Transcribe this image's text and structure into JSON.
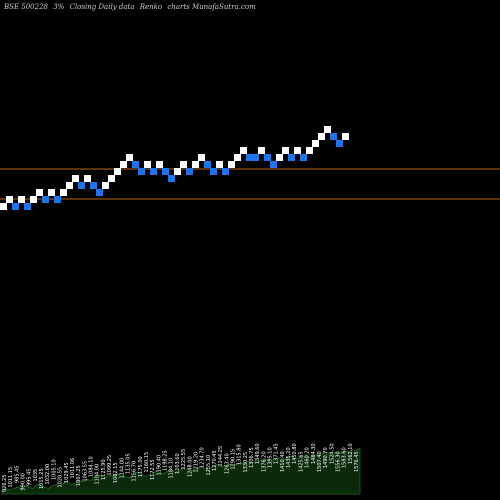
{
  "header": {
    "exchange_code": "BSE 500228",
    "box_size": "3%",
    "description": "Closing Daily data",
    "chart_kind": "Renko",
    "source": "charts MunafaSutra.com"
  },
  "colors": {
    "background": "#000000",
    "up_brick": "#ffffff",
    "down_brick": "#1e74e8",
    "reference_line": "#b8650f",
    "volume_fill": "#0b2a0b",
    "volume_line": "#1e6b1e",
    "label_text": "#ffffff"
  },
  "chart_data": {
    "type": "renko",
    "title": "BSE 500228 3% Closing Daily data Renko charts MunafaSutra.com",
    "bricks": [
      {
        "dir": "up",
        "level": 0
      },
      {
        "dir": "up",
        "level": 1
      },
      {
        "dir": "down",
        "level": 0
      },
      {
        "dir": "up",
        "level": 1
      },
      {
        "dir": "down",
        "level": 0
      },
      {
        "dir": "up",
        "level": 1
      },
      {
        "dir": "up",
        "level": 2
      },
      {
        "dir": "down",
        "level": 1
      },
      {
        "dir": "up",
        "level": 2
      },
      {
        "dir": "down",
        "level": 1
      },
      {
        "dir": "up",
        "level": 2
      },
      {
        "dir": "up",
        "level": 3
      },
      {
        "dir": "up",
        "level": 4
      },
      {
        "dir": "down",
        "level": 3
      },
      {
        "dir": "up",
        "level": 4
      },
      {
        "dir": "down",
        "level": 3
      },
      {
        "dir": "down",
        "level": 2
      },
      {
        "dir": "up",
        "level": 3
      },
      {
        "dir": "up",
        "level": 4
      },
      {
        "dir": "up",
        "level": 5
      },
      {
        "dir": "up",
        "level": 6
      },
      {
        "dir": "up",
        "level": 7
      },
      {
        "dir": "down",
        "level": 6
      },
      {
        "dir": "down",
        "level": 5
      },
      {
        "dir": "up",
        "level": 6
      },
      {
        "dir": "down",
        "level": 5
      },
      {
        "dir": "up",
        "level": 6
      },
      {
        "dir": "down",
        "level": 5
      },
      {
        "dir": "down",
        "level": 4
      },
      {
        "dir": "up",
        "level": 5
      },
      {
        "dir": "up",
        "level": 6
      },
      {
        "dir": "down",
        "level": 5
      },
      {
        "dir": "up",
        "level": 6
      },
      {
        "dir": "up",
        "level": 7
      },
      {
        "dir": "down",
        "level": 6
      },
      {
        "dir": "down",
        "level": 5
      },
      {
        "dir": "up",
        "level": 6
      },
      {
        "dir": "down",
        "level": 5
      },
      {
        "dir": "up",
        "level": 6
      },
      {
        "dir": "up",
        "level": 7
      },
      {
        "dir": "up",
        "level": 8
      },
      {
        "dir": "down",
        "level": 7
      },
      {
        "dir": "down",
        "level": 7
      },
      {
        "dir": "up",
        "level": 8
      },
      {
        "dir": "down",
        "level": 7
      },
      {
        "dir": "down",
        "level": 6
      },
      {
        "dir": "up",
        "level": 7
      },
      {
        "dir": "up",
        "level": 8
      },
      {
        "dir": "down",
        "level": 7
      },
      {
        "dir": "up",
        "level": 8
      },
      {
        "dir": "down",
        "level": 7
      },
      {
        "dir": "up",
        "level": 8
      },
      {
        "dir": "up",
        "level": 9
      },
      {
        "dir": "up",
        "level": 10
      },
      {
        "dir": "up",
        "level": 11
      },
      {
        "dir": "down",
        "level": 10
      },
      {
        "dir": "down",
        "level": 9
      },
      {
        "dir": "up",
        "level": 10
      }
    ],
    "price_labels": [
      "926.25",
      "1011.15",
      "985.45",
      "990.00",
      "995.45",
      "1035",
      "1015.25",
      "1032.00",
      "1005.10",
      "1020.55",
      "1029.45",
      "1011.06",
      "1007.25",
      "1063.55",
      "1084.10",
      "1104.00",
      "1125.90",
      "1099.25",
      "1082.15",
      "1144.00",
      "1135.05",
      "1156.70",
      "1175.00",
      "1160.15",
      "1172.55",
      "1190.40",
      "1198.25",
      "1184.10",
      "1203.60",
      "1225.55",
      "1248.00",
      "1219.20",
      "1234.70",
      "1255.10",
      "1270.45",
      "1244.25",
      "1263.40",
      "1290.15",
      "1315.80",
      "1330.25",
      "1306.75",
      "1349.60",
      "1376.20",
      "1395.10",
      "1371.45",
      "1410.40",
      "1435.20",
      "1450.80",
      "1425.65",
      "1460.20",
      "1484.30",
      "1507.40",
      "1490.70",
      "1524.50",
      "1556.30",
      "1583.60",
      "1562.10",
      "1576.45"
    ],
    "reference_lines": [
      "upper",
      "lower"
    ],
    "volume": [
      3,
      4,
      3,
      4,
      5,
      4,
      6,
      5,
      4,
      7,
      6,
      5,
      4,
      6,
      7,
      6,
      8,
      9,
      7,
      8,
      10,
      9,
      11,
      10,
      12,
      14,
      13,
      12,
      14,
      13,
      15,
      14,
      13,
      12,
      14,
      16,
      15,
      13,
      14,
      15,
      17,
      16,
      15,
      17,
      18,
      16,
      17,
      19,
      18,
      17,
      18,
      19,
      20,
      18,
      19,
      21,
      22,
      20,
      21,
      22,
      21,
      22,
      23,
      22,
      24,
      23,
      25,
      24,
      26,
      25,
      24,
      26,
      27,
      25,
      26,
      28,
      27,
      26,
      28,
      29,
      27,
      28,
      30,
      29,
      31,
      30,
      29,
      31,
      30,
      32,
      31,
      33,
      32,
      34
    ]
  }
}
